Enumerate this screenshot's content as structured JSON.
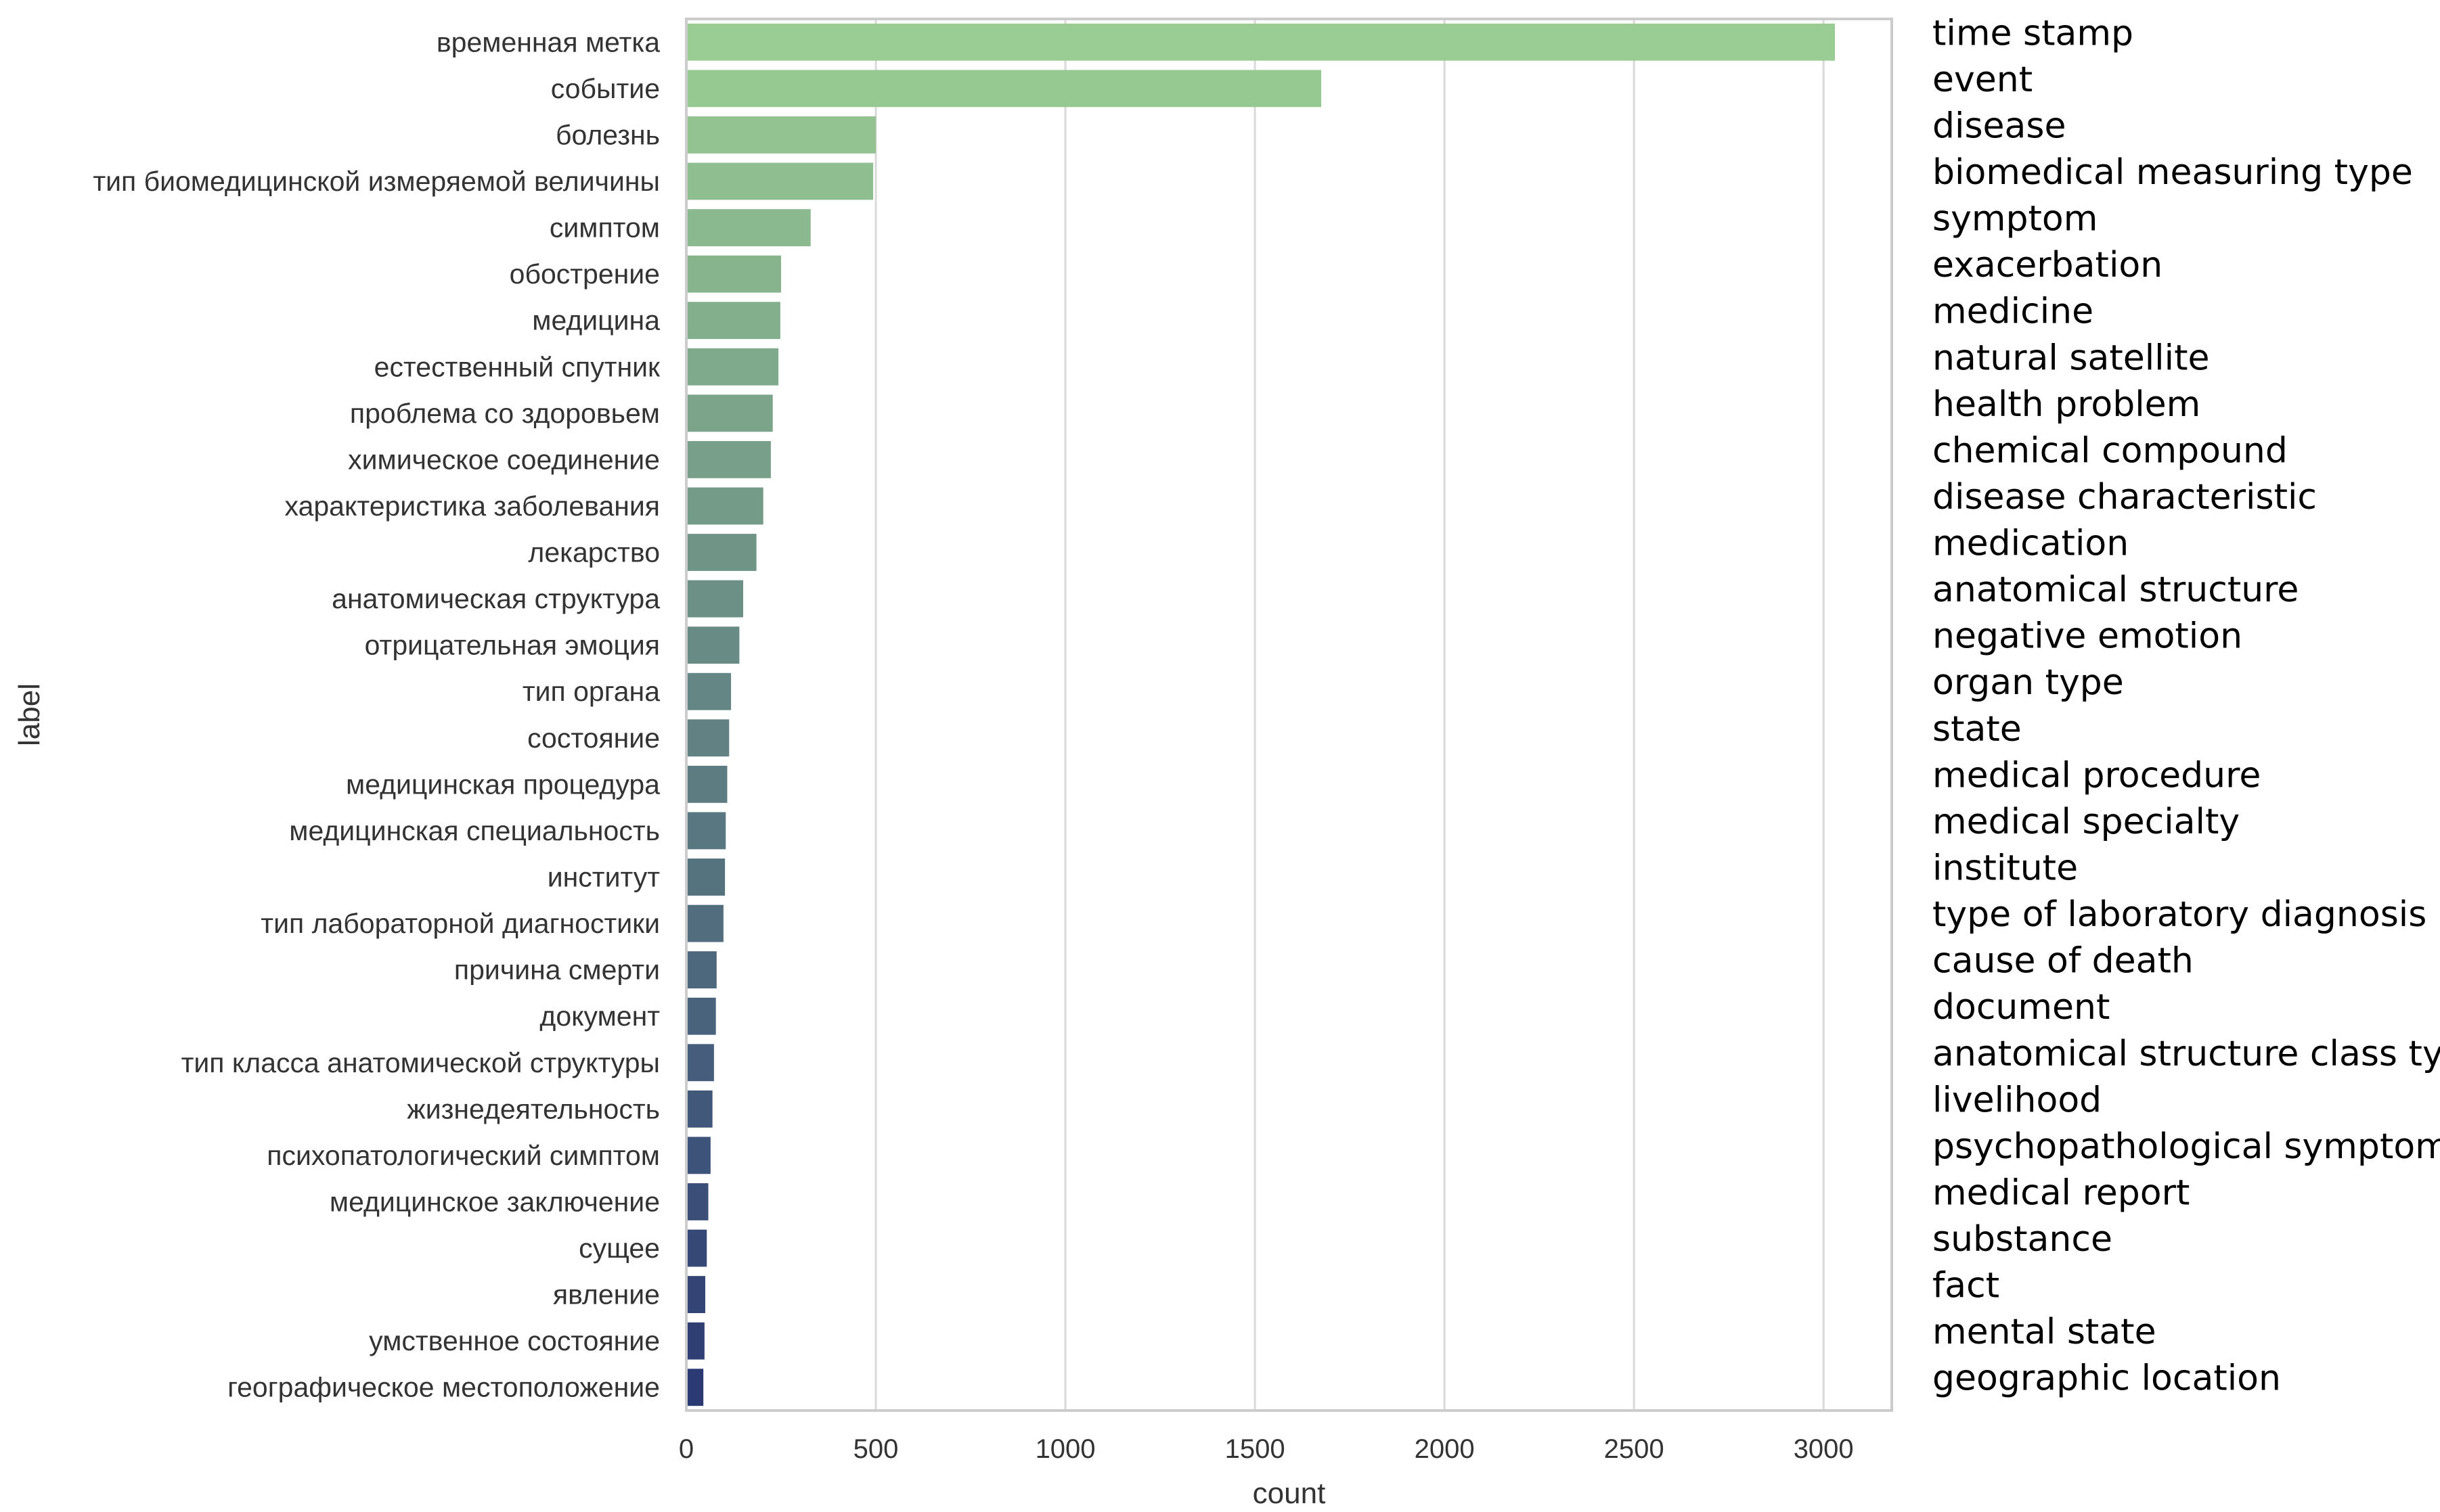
{
  "chart_data": {
    "type": "bar",
    "orientation": "horizontal",
    "xlabel": "count",
    "ylabel": "label",
    "xlim": [
      0,
      3180
    ],
    "xticks": [
      0,
      500,
      1000,
      1500,
      2000,
      2500,
      3000
    ],
    "grid": "vertical",
    "palette": "crest",
    "colors": {
      "start": "#9acd93",
      "end": "#2b3a73",
      "grid": "#d9d9d9",
      "frame": "#cccccc"
    },
    "categories": [
      "временная метка",
      "событие",
      "болезнь",
      "тип биомедицинской измеряемой величины",
      "симптом",
      "обострение",
      "медицина",
      "естественный спутник",
      "проблема со здоровьем",
      "химическое соединение",
      "характеристика заболевания",
      "лекарство",
      "анатомическая структура",
      "отрицательная эмоция",
      "тип органа",
      "состояние",
      "медицинская процедура",
      "медицинская специальность",
      "институт",
      "тип лабораторной диагностики",
      "причина смерти",
      "документ",
      "тип класса анатомической структуры",
      "жизнедеятельность",
      "психопатологический симптом",
      "медицинское заключение",
      "сущее",
      "явление",
      "умственное состояние",
      "географическое местоположение"
    ],
    "translations": [
      "time stamp",
      "event",
      "disease",
      "biomedical measuring type",
      "symptom",
      "exacerbation",
      "medicine",
      "natural satellite",
      "health problem",
      "chemical compound",
      "disease characteristic",
      "medication",
      "anatomical structure",
      "negative emotion",
      "organ type",
      "state",
      "medical procedure",
      "medical specialty",
      "institute",
      "type of laboratory diagnosis",
      "cause of death",
      "document",
      "anatomical structure class type",
      "livelihood",
      "psychopathological symptom",
      "medical report",
      "substance",
      "fact",
      "mental state",
      "geographic location"
    ],
    "values": [
      3030,
      1675,
      500,
      493,
      328,
      250,
      248,
      243,
      228,
      223,
      203,
      185,
      150,
      140,
      118,
      113,
      108,
      104,
      102,
      98,
      80,
      78,
      73,
      69,
      64,
      58,
      54,
      50,
      48,
      45
    ]
  }
}
